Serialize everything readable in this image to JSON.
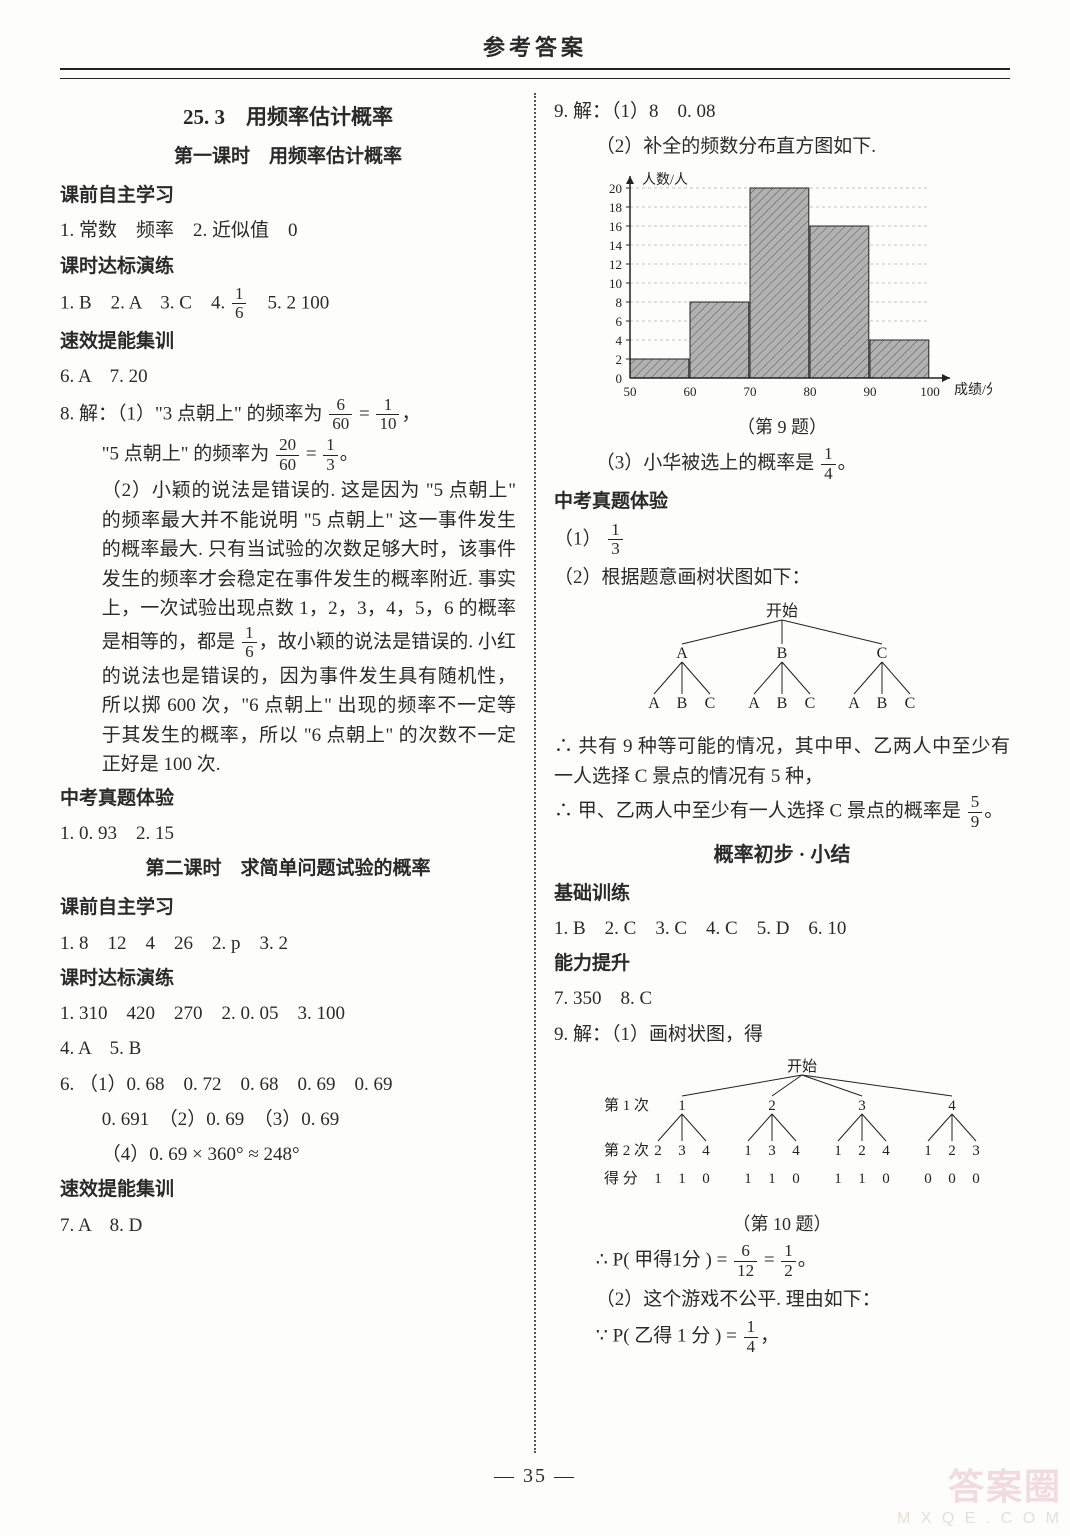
{
  "page": {
    "header": "参考答案",
    "pageNumber": "— 35 —",
    "watermark_big": "答案圈",
    "watermark_small": "M X Q E . C O M"
  },
  "left": {
    "section_title": "25. 3　用频率估计概率",
    "lesson1_title": "第一课时　用频率估计概率",
    "kqzx": "课前自主学习",
    "kqzx_a": "1. 常数　频率　2. 近似值　0",
    "ksdb": "课时达标演练",
    "ksdb_a_prefix": "1. B　2. A　3. C　4. ",
    "ksdb_a_suffix": "　5. 2 100",
    "sxtn": "速效提能集训",
    "sxtn_a": "6. A　7. 20",
    "q8_open": "8. 解：（1）\"3 点朝上\" 的频率为 ",
    "q8_eq": " = ",
    "q8_comma": "，",
    "q8_line2_pre": "\"5 点朝上\" 的频率为 ",
    "q8_line2_end": "。",
    "q8_p2": "（2）小颖的说法是错误的. 这是因为 \"5 点朝上\" 的频率最大并不能说明 \"5 点朝上\" 这一事件发生的概率最大. 只有当试验的次数足够大时，该事件发生的频率才会稳定在事件发生的概率附近. 事实上，一次试验出现点数 1，2，3，4，5，6 的概率是相等的，都是",
    "q8_p2_tail": "，故小颖的说法是错误的. 小红的说法也是错误的，因为事件发生具有随机性，所以掷 600 次，\"6 点朝上\" 出现的频率不一定等于其发生的概率，所以 \"6 点朝上\" 的次数不一定正好是 100 次.",
    "zkzt": "中考真题体验",
    "zkzt_a": "1. 0. 93　2. 15",
    "lesson2_title": "第二课时　求简单问题试验的概率",
    "kqzx2_a": "1. 8　12　4　26　2. p　3. 2",
    "ksdb2_l1": "1. 310　420　270　2. 0. 05　3. 100",
    "ksdb2_l2": "4. A　5. B",
    "q6_l1": "6. （1）0. 68　0. 72　0. 68　0. 69　0. 69",
    "q6_l2": "0. 691　（2）0. 69　（3）0. 69",
    "q6_l3": "（4）0. 69 × 360° ≈ 248°",
    "sxtn2_a": "7. A　8. D",
    "frac_1_6": {
      "n": "1",
      "d": "6"
    },
    "frac_6_60": {
      "n": "6",
      "d": "60"
    },
    "frac_1_10": {
      "n": "1",
      "d": "10"
    },
    "frac_20_60": {
      "n": "20",
      "d": "60"
    },
    "frac_1_3": {
      "n": "1",
      "d": "3"
    }
  },
  "right": {
    "q9_l1": "9. 解：（1）8　0. 08",
    "q9_l2": "（2）补全的频数分布直方图如下.",
    "hist": {
      "y_label": "人数/人",
      "x_label": "成绩/分",
      "y_ticks": [
        "2",
        "4",
        "6",
        "8",
        "10",
        "12",
        "14",
        "16",
        "18",
        "20"
      ],
      "x_ticks": [
        "50",
        "60",
        "70",
        "80",
        "90",
        "100"
      ],
      "bars": [
        {
          "x": 50,
          "h": 2
        },
        {
          "x": 60,
          "h": 8
        },
        {
          "x": 70,
          "h": 20
        },
        {
          "x": 80,
          "h": 16
        },
        {
          "x": 90,
          "h": 4
        }
      ],
      "bar_fill": "#b2b2b2",
      "hatch_stroke": "#555555",
      "axis_color": "#222222",
      "bg": "#fdfdfc",
      "caption": "（第 9 题）"
    },
    "q9_l3_pre": "（3）小华被选上的概率是 ",
    "q9_l3_end": "。",
    "frac_1_4": {
      "n": "1",
      "d": "4"
    },
    "zkzt": "中考真题体验",
    "zk_l1_pre": "（1） ",
    "frac_1_3": {
      "n": "1",
      "d": "3"
    },
    "zk_l2": "（2）根据题意画树状图如下：",
    "tree1": {
      "root": "开始",
      "level1": [
        "A",
        "B",
        "C"
      ],
      "level2": [
        "A",
        "B",
        "C",
        "A",
        "B",
        "C",
        "A",
        "B",
        "C"
      ],
      "stroke": "#222222",
      "font": 16
    },
    "tree1_after1": "∴ 共有 9 种等可能的情况，其中甲、乙两人中至少有一人选择 C 景点的情况有 5 种，",
    "tree1_after2_pre": "∴ 甲、乙两人中至少有一人选择 C 景点的概率是 ",
    "frac_5_9": {
      "n": "5",
      "d": "9"
    },
    "tree1_after2_end": "。",
    "summary_title": "概率初步 · 小结",
    "jcxl": "基础训练",
    "jcxl_a": "1. B　2. C　3. C　4. C　5. D　6. 10",
    "nlts": "能力提升",
    "nlts_a": "7. 350　8. C",
    "q9b_l1": "9. 解：（1）画树状图，得",
    "tree2": {
      "root": "开始",
      "row1_label": "第 1 次",
      "row2_label": "第 2 次",
      "row3_label": "得 分",
      "level1": [
        "1",
        "2",
        "3",
        "4"
      ],
      "level2": [
        "2",
        "3",
        "4",
        "1",
        "3",
        "4",
        "1",
        "2",
        "4",
        "1",
        "2",
        "3"
      ],
      "scores": [
        "1",
        "1",
        "0",
        "1",
        "1",
        "0",
        "1",
        "1",
        "0",
        "0",
        "0",
        "0"
      ],
      "stroke": "#222222",
      "caption": "（第 10 题）"
    },
    "p_line_pre": "∴ P( 甲得1分 ) = ",
    "frac_6_12": {
      "n": "6",
      "d": "12"
    },
    "p_line_mid": " = ",
    "frac_1_2": {
      "n": "1",
      "d": "2"
    },
    "p_line_end": "。",
    "q9b_l2": "（2）这个游戏不公平. 理由如下：",
    "q9b_l3_pre": "∵ P( 乙得 1 分 ) = ",
    "q9b_l3_end": "，"
  }
}
